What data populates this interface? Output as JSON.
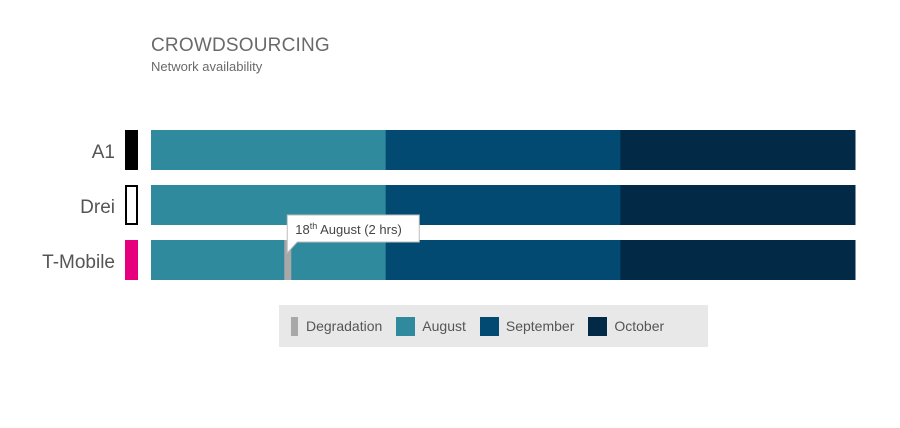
{
  "header": {
    "title": "CROWDSOURCING",
    "subtitle": "Network availability"
  },
  "chart_data": {
    "type": "bar",
    "orientation": "horizontal",
    "stacked": true,
    "categories": [
      "A1",
      "Drei",
      "T-Mobile"
    ],
    "series": [
      {
        "name": "August",
        "color": "#2e8a9c",
        "values": [
          1,
          1,
          1
        ]
      },
      {
        "name": "September",
        "color": "#034a72",
        "values": [
          1,
          1,
          1
        ]
      },
      {
        "name": "October",
        "color": "#022945",
        "values": [
          1,
          1,
          1
        ]
      }
    ],
    "operator_colors": {
      "A1": {
        "fill": "#000000",
        "stroke": "#000000"
      },
      "Drei": {
        "fill": "#ffffff",
        "stroke": "#000000"
      },
      "T-Mobile": {
        "fill": "#e6007e",
        "stroke": "#e6007e"
      }
    },
    "degradation": {
      "category": "T-Mobile",
      "month": "August",
      "day": 18,
      "color": "#a8a8a8",
      "label_day": "18",
      "label_suffix": "th",
      "label_rest": " August (2 hrs)"
    },
    "legend": [
      {
        "label": "Degradation",
        "color": "#a8a8a8",
        "thin": true
      },
      {
        "label": "August",
        "color": "#2e8a9c",
        "thin": false
      },
      {
        "label": "September",
        "color": "#034a72",
        "thin": false
      },
      {
        "label": "October",
        "color": "#022945",
        "thin": false
      }
    ],
    "legend_placement": "bottom"
  }
}
